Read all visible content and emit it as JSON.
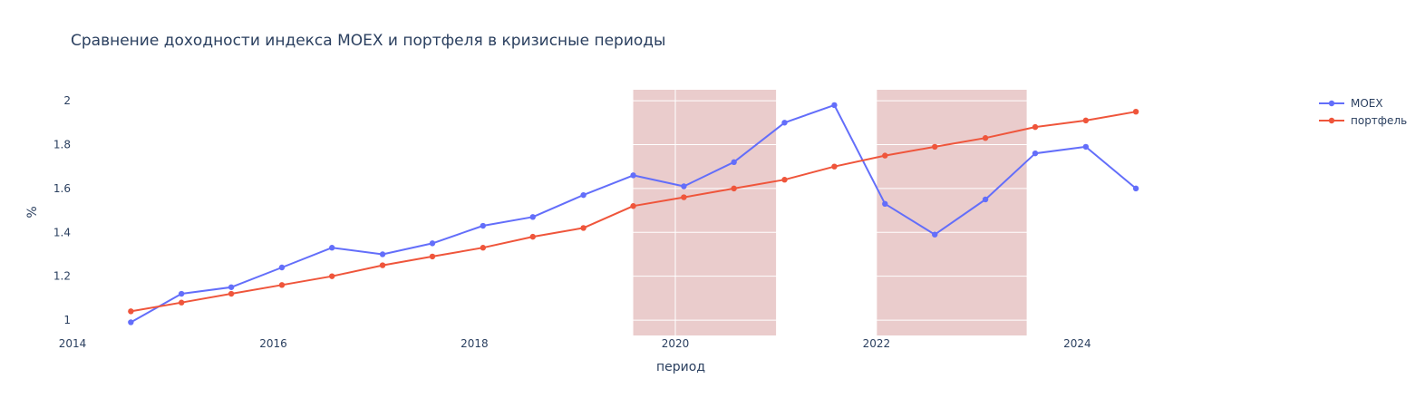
{
  "chart_data": {
    "type": "line",
    "title": "Сравнение доходности индекса MOEX и портфеля в кризисные периоды",
    "xlabel": "период",
    "ylabel": "%",
    "xlim": [
      "2014-01-01",
      "2025-12-31"
    ],
    "ylim": [
      0.93,
      2.05
    ],
    "x_ticks": [
      "2014",
      "2016",
      "2018",
      "2020",
      "2022",
      "2024"
    ],
    "x_tick_dates": [
      "2014-01-01",
      "2016-01-01",
      "2018-01-01",
      "2020-01-01",
      "2022-01-01",
      "2024-01-01"
    ],
    "y_ticks": [
      1,
      1.2,
      1.4,
      1.6,
      1.8,
      2
    ],
    "y_tick_labels": [
      "1",
      "1.2",
      "1.4",
      "1.6",
      "1.8",
      "2"
    ],
    "grid": true,
    "legend_position": "top-right",
    "shaded_periods": [
      {
        "start": "2019-08-01",
        "end": "2021-01-01",
        "color": "#dcaaaa"
      },
      {
        "start": "2022-01-01",
        "end": "2023-07-01",
        "color": "#dcaaaa"
      }
    ],
    "x": [
      "2014-08-01",
      "2015-02-01",
      "2015-08-01",
      "2016-02-01",
      "2016-08-01",
      "2017-02-01",
      "2017-08-01",
      "2018-02-01",
      "2018-08-01",
      "2019-02-01",
      "2019-08-01",
      "2020-02-01",
      "2020-08-01",
      "2021-02-01",
      "2021-08-01",
      "2022-02-01",
      "2022-08-01",
      "2023-02-01",
      "2023-08-01",
      "2024-02-01",
      "2024-08-01"
    ],
    "series": [
      {
        "name": "MOEX",
        "color": "#636efa",
        "values": [
          0.99,
          1.12,
          1.15,
          1.24,
          1.33,
          1.3,
          1.35,
          1.43,
          1.47,
          1.57,
          1.66,
          1.61,
          1.72,
          1.9,
          1.98,
          1.53,
          1.39,
          1.55,
          1.76,
          1.79,
          1.6
        ]
      },
      {
        "name": "портфель",
        "color": "#ef553b",
        "values": [
          1.04,
          1.08,
          1.12,
          1.16,
          1.2,
          1.25,
          1.29,
          1.33,
          1.38,
          1.42,
          1.52,
          1.56,
          1.6,
          1.64,
          1.7,
          1.75,
          1.79,
          1.83,
          1.88,
          1.91,
          1.95
        ]
      }
    ]
  }
}
